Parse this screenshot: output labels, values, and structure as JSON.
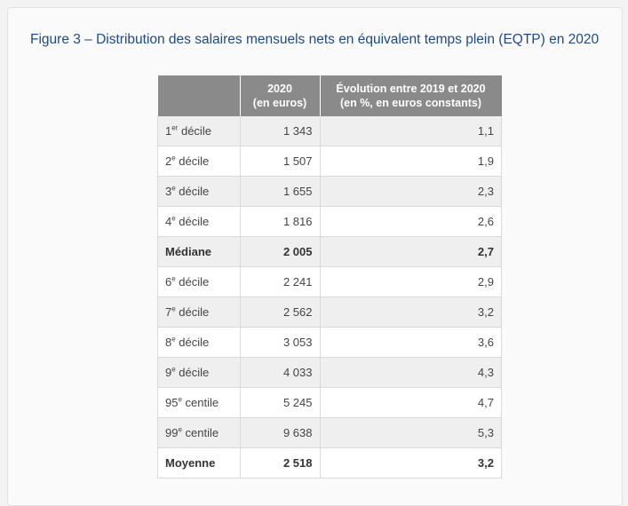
{
  "figure": {
    "title": "Figure 3 – Distribution des salaires mensuels nets en équivalent temps plein (EQTP) en 2020"
  },
  "table": {
    "headers": {
      "col1": "",
      "col2_line1": "2020",
      "col2_line2": "(en euros)",
      "col3_line1": "Évolution entre 2019 et 2020",
      "col3_line2": "(en %, en euros constants)"
    },
    "rows": [
      {
        "num": "1",
        "sup": "er",
        "rest": " décile",
        "value": "1 343",
        "evolution": "1,1",
        "bold": false
      },
      {
        "num": "2",
        "sup": "e",
        "rest": " décile",
        "value": "1 507",
        "evolution": "1,9",
        "bold": false
      },
      {
        "num": "3",
        "sup": "e",
        "rest": " décile",
        "value": "1 655",
        "evolution": "2,3",
        "bold": false
      },
      {
        "num": "4",
        "sup": "e",
        "rest": " décile",
        "value": "1 816",
        "evolution": "2,6",
        "bold": false
      },
      {
        "num": "Médiane",
        "sup": "",
        "rest": "",
        "value": "2 005",
        "evolution": "2,7",
        "bold": true
      },
      {
        "num": "6",
        "sup": "e",
        "rest": " décile",
        "value": "2 241",
        "evolution": "2,9",
        "bold": false
      },
      {
        "num": "7",
        "sup": "e",
        "rest": " décile",
        "value": "2 562",
        "evolution": "3,2",
        "bold": false
      },
      {
        "num": "8",
        "sup": "e",
        "rest": " décile",
        "value": "3 053",
        "evolution": "3,6",
        "bold": false
      },
      {
        "num": "9",
        "sup": "e",
        "rest": " décile",
        "value": "4 033",
        "evolution": "4,3",
        "bold": false
      },
      {
        "num": "95",
        "sup": "e",
        "rest": " centile",
        "value": "5 245",
        "evolution": "4,7",
        "bold": false
      },
      {
        "num": "99",
        "sup": "e",
        "rest": " centile",
        "value": "9 638",
        "evolution": "5,3",
        "bold": false
      },
      {
        "num": "Moyenne",
        "sup": "",
        "rest": "",
        "value": "2 518",
        "evolution": "3,2",
        "bold": true
      }
    ]
  }
}
